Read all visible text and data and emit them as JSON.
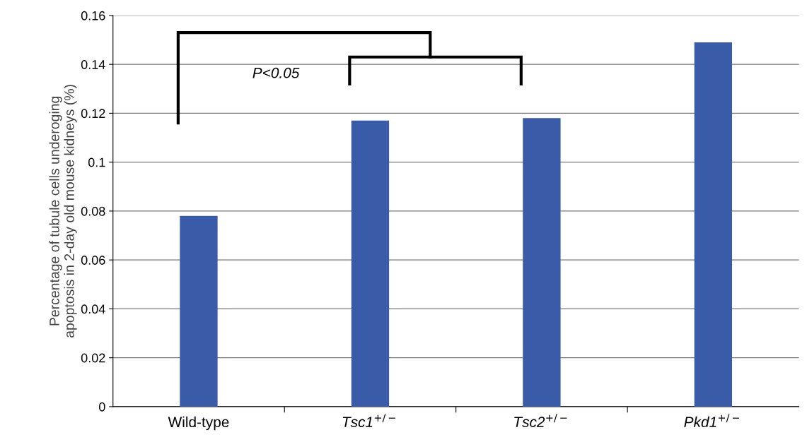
{
  "chart_data": {
    "type": "bar",
    "ylabel": "Percentage of tubule cells underoging\napoptosis in 2-day old mouse kidneys (%)",
    "categories": [
      "Wild-type",
      "Tsc1$^{+/−}$",
      "Tsc2$^{+/−}$",
      "Pkd1$^{+/−}$"
    ],
    "values": [
      0.078,
      0.117,
      0.118,
      0.149
    ],
    "color": "#3a5ca8",
    "ylim": [
      0,
      0.16
    ],
    "yticks": [
      0,
      0.02,
      0.04,
      0.06,
      0.08,
      {
        "value": 0.1,
        "label": "0.1"
      },
      0.12,
      0.14,
      0.16
    ],
    "grid": "y",
    "annotations": [
      "P<0.05"
    ]
  }
}
